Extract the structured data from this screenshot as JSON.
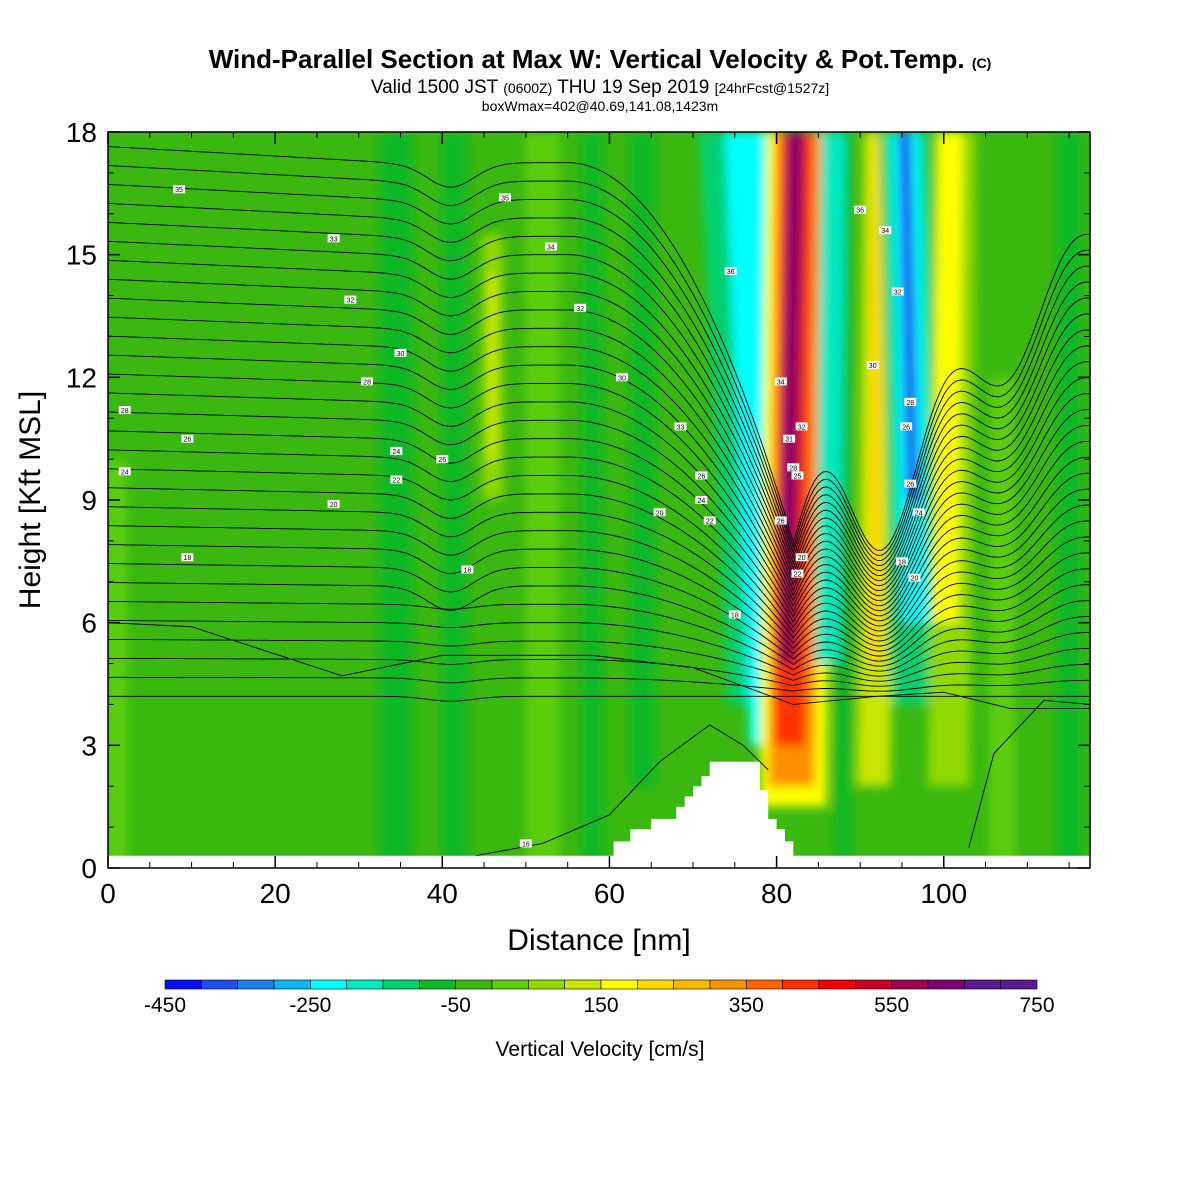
{
  "title": {
    "main": "Wind-Parallel Section at Max W: Vertical Velocity & Pot.Temp.",
    "main_note": "(C)",
    "valid_prefix": "Valid 1500 JST",
    "valid_utc": "(0600Z)",
    "valid_date": "THU 19 Sep 2019",
    "forecast": "[24hrFcst@1527z]",
    "box": "boxWmax=402@40.69,141.08,1423m"
  },
  "chart_data": {
    "type": "heatmap",
    "xlabel": "Distance [nm]",
    "ylabel": "Height [Kft MSL]",
    "xlim": [
      0,
      117.5
    ],
    "ylim": [
      0,
      18
    ],
    "x_ticks": [
      0,
      20,
      40,
      60,
      80,
      100
    ],
    "y_ticks": [
      0,
      3,
      6,
      9,
      12,
      15,
      18
    ],
    "colorbar": {
      "label": "Vertical Velocity [cm/s]",
      "min": -450,
      "max": 750,
      "step": 50,
      "tick_labels": [
        "-450",
        "-250",
        "-50",
        "150",
        "350",
        "550",
        "750"
      ],
      "colors": [
        "#0a10f0",
        "#1e50f0",
        "#1e80f0",
        "#10b4f0",
        "#00ffff",
        "#00e8c0",
        "#00d070",
        "#10b828",
        "#3ab810",
        "#5ccd10",
        "#90d800",
        "#c8e600",
        "#ffff00",
        "#ffd800",
        "#ffb400",
        "#ff9000",
        "#ff6400",
        "#ff3000",
        "#f00000",
        "#c80028",
        "#a00050",
        "#800070",
        "#5a1a96"
      ]
    },
    "background_value": -40,
    "features": [
      {
        "name": "main updraft",
        "x": 82,
        "z_range": [
          1.5,
          18
        ],
        "peak_value": 600,
        "tilt_nm_per_kft": 0.25
      },
      {
        "name": "downdraft west of updraft",
        "x": 78,
        "z_range": [
          2.5,
          18
        ],
        "peak_value": -250
      },
      {
        "name": "weak updraft",
        "x": 92,
        "z_range": [
          2,
          18
        ],
        "peak_value": 180
      },
      {
        "name": "downdraft",
        "x": 96,
        "z_range": [
          5,
          18
        ],
        "peak_value": -400
      },
      {
        "name": "weak updraft",
        "x": 101,
        "z_range": [
          3,
          18
        ],
        "peak_value": 170
      },
      {
        "name": "weak updraft",
        "x": 46,
        "z_range": [
          9,
          16
        ],
        "peak_value": 90
      }
    ],
    "terrain": {
      "x": [
        0,
        60.5,
        60.5,
        62.5,
        62.5,
        65,
        65,
        68,
        68,
        69,
        69,
        70,
        70,
        71,
        71,
        72,
        72,
        78,
        78,
        79,
        79,
        80,
        80,
        81,
        81,
        82,
        82,
        83.5,
        83.5,
        117.5
      ],
      "height_kft": [
        0.3,
        0.3,
        0.65,
        0.65,
        0.95,
        0.95,
        1.2,
        1.2,
        1.5,
        1.5,
        1.75,
        1.75,
        2.0,
        2.0,
        2.25,
        2.25,
        2.6,
        2.6,
        1.9,
        1.9,
        1.2,
        1.2,
        0.95,
        0.95,
        0.65,
        0.65,
        0.3,
        0.3,
        0.3,
        0.3
      ]
    },
    "contours": {
      "variable": "potential temperature",
      "labels": [
        {
          "text": "16",
          "x": 50,
          "y": 0.6
        },
        {
          "text": "18",
          "x": 9.5,
          "y": 7.6
        },
        {
          "text": "18",
          "x": 43,
          "y": 7.3
        },
        {
          "text": "18",
          "x": 75,
          "y": 6.2
        },
        {
          "text": "20",
          "x": 27,
          "y": 8.9
        },
        {
          "text": "22",
          "x": 34.5,
          "y": 9.5
        },
        {
          "text": "24",
          "x": 2,
          "y": 9.7
        },
        {
          "text": "24",
          "x": 34.5,
          "y": 10.2
        },
        {
          "text": "26",
          "x": 9.5,
          "y": 10.5
        },
        {
          "text": "28",
          "x": 2,
          "y": 11.2
        },
        {
          "text": "28",
          "x": 31,
          "y": 11.9
        },
        {
          "text": "30",
          "x": 35,
          "y": 12.6
        },
        {
          "text": "30",
          "x": 61.5,
          "y": 12.0
        },
        {
          "text": "32",
          "x": 29,
          "y": 13.9
        },
        {
          "text": "32",
          "x": 56.5,
          "y": 13.7
        },
        {
          "text": "33",
          "x": 27,
          "y": 15.4
        },
        {
          "text": "34",
          "x": 53,
          "y": 15.2
        },
        {
          "text": "35",
          "x": 8.5,
          "y": 16.6
        },
        {
          "text": "35",
          "x": 47.5,
          "y": 16.4
        },
        {
          "text": "26",
          "x": 40,
          "y": 10.0
        },
        {
          "text": "33",
          "x": 68.5,
          "y": 10.8
        },
        {
          "text": "26",
          "x": 71,
          "y": 9.6
        },
        {
          "text": "24",
          "x": 71,
          "y": 9.0
        },
        {
          "text": "22",
          "x": 72,
          "y": 8.5
        },
        {
          "text": "20",
          "x": 66,
          "y": 8.7
        },
        {
          "text": "31",
          "x": 81.5,
          "y": 10.5
        },
        {
          "text": "34",
          "x": 80.5,
          "y": 11.9
        },
        {
          "text": "36",
          "x": 74.5,
          "y": 14.6
        },
        {
          "text": "28",
          "x": 82,
          "y": 9.8
        },
        {
          "text": "26",
          "x": 80.5,
          "y": 8.5
        },
        {
          "text": "25",
          "x": 82.5,
          "y": 9.6
        },
        {
          "text": "20",
          "x": 83,
          "y": 7.6
        },
        {
          "text": "22",
          "x": 82.5,
          "y": 7.2
        },
        {
          "text": "32",
          "x": 83,
          "y": 10.8
        },
        {
          "text": "36",
          "x": 90,
          "y": 16.1
        },
        {
          "text": "34",
          "x": 93,
          "y": 15.6
        },
        {
          "text": "32",
          "x": 94.5,
          "y": 14.1
        },
        {
          "text": "30",
          "x": 91.5,
          "y": 12.3
        },
        {
          "text": "28",
          "x": 96,
          "y": 11.4
        },
        {
          "text": "26",
          "x": 95.5,
          "y": 10.8
        },
        {
          "text": "26",
          "x": 96,
          "y": 9.4
        },
        {
          "text": "24",
          "x": 97,
          "y": 8.7
        },
        {
          "text": "18",
          "x": 95,
          "y": 7.5
        },
        {
          "text": "20",
          "x": 96.5,
          "y": 7.1
        }
      ]
    }
  }
}
